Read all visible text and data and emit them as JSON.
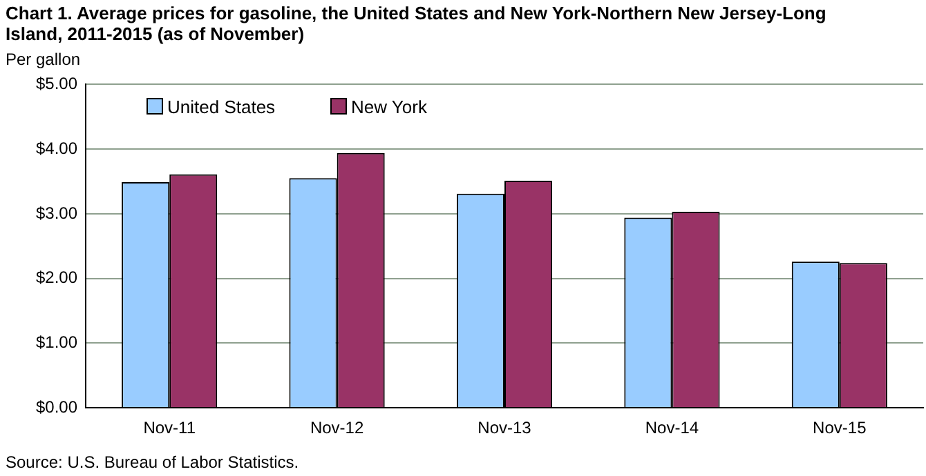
{
  "chart_data": {
    "type": "bar",
    "title": "Chart 1. Average prices for gasoline, the United States and New York-Northern New Jersey-Long Island, 2011-2015 (as of November)",
    "ylabel": "Per gallon",
    "categories": [
      "Nov-11",
      "Nov-12",
      "Nov-13",
      "Nov-14",
      "Nov-15"
    ],
    "series": [
      {
        "name": "United States",
        "color": "#99ccff",
        "values": [
          3.49,
          3.55,
          3.31,
          2.94,
          2.26
        ]
      },
      {
        "name": "New York",
        "color": "#993366",
        "values": [
          3.61,
          3.94,
          3.51,
          3.03,
          2.24
        ]
      }
    ],
    "ylim": [
      0,
      5
    ],
    "yticks": [
      {
        "value": 0,
        "label": "$0.00"
      },
      {
        "value": 1,
        "label": "$1.00"
      },
      {
        "value": 2,
        "label": "$2.00"
      },
      {
        "value": 3,
        "label": "$3.00"
      },
      {
        "value": 4,
        "label": "$4.00"
      },
      {
        "value": 5,
        "label": "$5.00"
      }
    ],
    "grid": "y",
    "legend": "top left",
    "annotations": [
      "Source: U.S. Bureau of Labor Statistics."
    ]
  }
}
